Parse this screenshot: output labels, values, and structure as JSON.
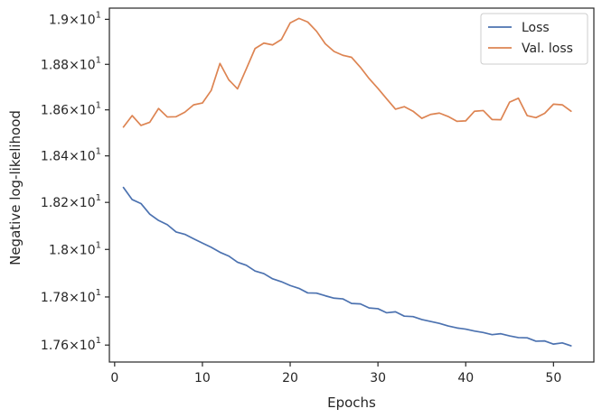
{
  "chart_data": {
    "type": "line",
    "xlabel": "Epochs",
    "ylabel": "Negative log-likelihood",
    "xlim": [
      -0.6,
      54.6
    ],
    "ylim": [
      17.53,
      19.05
    ],
    "yscale": "log",
    "grid": false,
    "legend_placement": "top-right",
    "x_ticks": [
      0,
      10,
      20,
      30,
      40,
      50
    ],
    "x_tick_labels": [
      "0",
      "10",
      "20",
      "30",
      "40",
      "50"
    ],
    "y_ticks": [
      17.6,
      17.8,
      18.0,
      18.2,
      18.4,
      18.6,
      18.8,
      19.0
    ],
    "y_tick_labels": [
      {
        "mantissa": "1.76",
        "exp": "1"
      },
      {
        "mantissa": "1.78",
        "exp": "1"
      },
      {
        "mantissa": "1.8",
        "exp": "1"
      },
      {
        "mantissa": "1.82",
        "exp": "1"
      },
      {
        "mantissa": "1.84",
        "exp": "1"
      },
      {
        "mantissa": "1.86",
        "exp": "1"
      },
      {
        "mantissa": "1.88",
        "exp": "1"
      },
      {
        "mantissa": "1.9",
        "exp": "1"
      }
    ],
    "x": [
      1,
      2,
      3,
      4,
      5,
      6,
      7,
      8,
      9,
      10,
      11,
      12,
      13,
      14,
      15,
      16,
      17,
      18,
      19,
      20,
      21,
      22,
      23,
      24,
      25,
      26,
      27,
      28,
      29,
      30,
      31,
      32,
      33,
      34,
      35,
      36,
      37,
      38,
      39,
      40,
      41,
      42,
      43,
      44,
      45,
      46,
      47,
      48,
      49,
      50,
      51,
      52
    ],
    "series": [
      {
        "name": "Loss",
        "color": "#4c72b0",
        "values": [
          18.264,
          18.212,
          18.195,
          18.15,
          18.123,
          18.105,
          18.074,
          18.064,
          18.045,
          18.027,
          18.009,
          17.988,
          17.972,
          17.946,
          17.933,
          17.909,
          17.898,
          17.876,
          17.864,
          17.848,
          17.836,
          17.817,
          17.816,
          17.805,
          17.795,
          17.792,
          17.773,
          17.771,
          17.754,
          17.751,
          17.734,
          17.738,
          17.72,
          17.718,
          17.706,
          17.698,
          17.69,
          17.679,
          17.671,
          17.666,
          17.658,
          17.652,
          17.643,
          17.647,
          17.638,
          17.631,
          17.63,
          17.616,
          17.617,
          17.604,
          17.609,
          17.597
        ]
      },
      {
        "name": "Val. loss",
        "color": "#dd8452",
        "values": [
          18.525,
          18.575,
          18.532,
          18.546,
          18.606,
          18.569,
          18.57,
          18.59,
          18.622,
          18.63,
          18.685,
          18.804,
          18.732,
          18.692,
          18.78,
          18.87,
          18.894,
          18.886,
          18.91,
          18.984,
          19.004,
          18.988,
          18.947,
          18.891,
          18.857,
          18.84,
          18.831,
          18.787,
          18.737,
          18.694,
          18.648,
          18.603,
          18.614,
          18.594,
          18.563,
          18.58,
          18.586,
          18.571,
          18.55,
          18.552,
          18.594,
          18.597,
          18.558,
          18.557,
          18.634,
          18.651,
          18.575,
          18.566,
          18.585,
          18.625,
          18.622,
          18.594
        ]
      }
    ]
  }
}
